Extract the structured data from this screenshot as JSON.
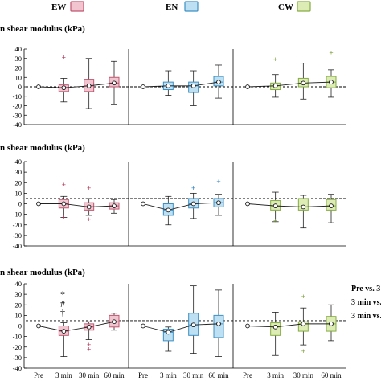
{
  "legend": [
    {
      "label": "EW",
      "fill": "#f2c4d0",
      "stroke": "#c0566f"
    },
    {
      "label": "EN",
      "fill": "#bde0f2",
      "stroke": "#3d8fc4"
    },
    {
      "label": "CW",
      "fill": "#dcecb4",
      "stroke": "#86ac43"
    }
  ],
  "groups": [
    {
      "name": "EW",
      "fill": "#f2c4d0",
      "stroke": "#c0566f",
      "outlier_color": "#b23a5a"
    },
    {
      "name": "EN",
      "fill": "#bde0f2",
      "stroke": "#3d8fc4",
      "outlier_color": "#2f7fc0"
    },
    {
      "name": "CW",
      "fill": "#dcecb4",
      "stroke": "#86ac43",
      "outlier_color": "#7da33a"
    }
  ],
  "x_tick_labels": [
    "Pre",
    "3 min",
    "30 min",
    "60 min"
  ],
  "annotations": {
    "stat_symbols": [
      "*",
      "#",
      "†"
    ],
    "right_notes": [
      "Pre vs. 3",
      "3 min vs.",
      "3 min vs."
    ]
  },
  "chart_data": [
    {
      "type": "box",
      "title": "n shear modulus (kPa)",
      "ylim": [
        -40,
        40
      ],
      "yticks": [
        40,
        30,
        20,
        10,
        0,
        -10,
        -20,
        -30,
        -40
      ],
      "reference_line": 0,
      "categories": [
        "Pre",
        "3 min",
        "30 min",
        "60 min"
      ],
      "series": [
        {
          "group": "EW",
          "boxes": [
            {
              "pre": true,
              "median": 0
            },
            {
              "median": -1,
              "q1": -5,
              "q3": 2,
              "whisker_low": -16,
              "whisker_high": 9,
              "outliers": [
                31
              ]
            },
            {
              "median": 1,
              "q1": -5,
              "q3": 8,
              "whisker_low": -23,
              "whisker_high": 30,
              "outliers": []
            },
            {
              "median": 4,
              "q1": 0,
              "q3": 10,
              "whisker_low": -19,
              "whisker_high": 27,
              "outliers": []
            }
          ]
        },
        {
          "group": "EN",
          "boxes": [
            {
              "pre": true,
              "median": 0
            },
            {
              "median": 1,
              "q1": -3,
              "q3": 5,
              "whisker_low": -9,
              "whisker_high": 17,
              "outliers": []
            },
            {
              "median": 1,
              "q1": -6,
              "q3": 5,
              "whisker_low": -20,
              "whisker_high": 17,
              "outliers": []
            },
            {
              "median": 5,
              "q1": 1,
              "q3": 11,
              "whisker_low": -12,
              "whisker_high": 23,
              "outliers": []
            }
          ]
        },
        {
          "group": "CW",
          "boxes": [
            {
              "pre": true,
              "median": 0
            },
            {
              "median": 1,
              "q1": -3,
              "q3": 4,
              "whisker_low": -11,
              "whisker_high": 13,
              "outliers": [
                29
              ]
            },
            {
              "median": 4,
              "q1": 0,
              "q3": 9,
              "whisker_low": -13,
              "whisker_high": 25,
              "outliers": []
            },
            {
              "median": 5,
              "q1": -1,
              "q3": 11,
              "whisker_low": -11,
              "whisker_high": 18,
              "outliers": [
                36
              ]
            }
          ]
        }
      ]
    },
    {
      "type": "box",
      "title": "n shear modulus (kPa)",
      "ylim": [
        -40,
        40
      ],
      "yticks": [
        40,
        30,
        20,
        10,
        0,
        -10,
        -20,
        -30,
        -40
      ],
      "reference_line": 5,
      "categories": [
        "Pre",
        "3 min",
        "30 min",
        "60 min"
      ],
      "series": [
        {
          "group": "EW",
          "boxes": [
            {
              "pre": true,
              "median": 0
            },
            {
              "median": 0,
              "q1": -4,
              "q3": 4,
              "whisker_low": -13,
              "whisker_high": 7,
              "outliers": [
                18,
                -13
              ]
            },
            {
              "median": -3,
              "q1": -6,
              "q3": 1,
              "whisker_low": -11,
              "whisker_high": 5,
              "outliers": [
                15,
                -15
              ]
            },
            {
              "median": -2,
              "q1": -5,
              "q3": 1,
              "whisker_low": -9,
              "whisker_high": 4,
              "outliers": []
            }
          ]
        },
        {
          "group": "EN",
          "boxes": [
            {
              "pre": true,
              "median": 0
            },
            {
              "median": -6,
              "q1": -11,
              "q3": 0,
              "whisker_low": -20,
              "whisker_high": 7,
              "outliers": []
            },
            {
              "median": 0,
              "q1": -4,
              "q3": 5,
              "whisker_low": -14,
              "whisker_high": 10,
              "outliers": [
                15
              ]
            },
            {
              "median": 1,
              "q1": -3,
              "q3": 5,
              "whisker_low": -11,
              "whisker_high": 9,
              "outliers": [
                21
              ]
            }
          ]
        },
        {
          "group": "CW",
          "boxes": [
            {
              "pre": true,
              "median": 0
            },
            {
              "median": -2,
              "q1": -6,
              "q3": 3,
              "whisker_low": -17,
              "whisker_high": 11,
              "outliers": [
                -16
              ]
            },
            {
              "median": -3,
              "q1": -6,
              "q3": 5,
              "whisker_low": -23,
              "whisker_high": 8,
              "outliers": []
            },
            {
              "median": -2,
              "q1": -6,
              "q3": 4,
              "whisker_low": -18,
              "whisker_high": 9,
              "outliers": []
            }
          ]
        }
      ]
    },
    {
      "type": "box",
      "title": "n shear modulus (kPa)",
      "ylim": [
        -40,
        40
      ],
      "yticks": [
        40,
        30,
        20,
        10,
        0,
        -10,
        -20,
        -30,
        -40
      ],
      "reference_line": 5,
      "categories": [
        "Pre",
        "3 min",
        "30 min",
        "60 min"
      ],
      "series": [
        {
          "group": "EW",
          "boxes": [
            {
              "pre": true,
              "median": 0
            },
            {
              "median": -5,
              "q1": -9,
              "q3": 0,
              "whisker_low": -29,
              "whisker_high": 3,
              "outliers": []
            },
            {
              "median": -1,
              "q1": -4,
              "q3": 2,
              "whisker_low": -13,
              "whisker_high": 4,
              "outliers": [
                -18,
                -22
              ]
            },
            {
              "median": 4,
              "q1": -1,
              "q3": 10,
              "whisker_low": -4,
              "whisker_high": 12,
              "outliers": []
            }
          ]
        },
        {
          "group": "EN",
          "boxes": [
            {
              "pre": true,
              "median": 0
            },
            {
              "median": -6,
              "q1": -14,
              "q3": -3,
              "whisker_low": -24,
              "whisker_high": -1,
              "outliers": []
            },
            {
              "median": 1,
              "q1": -9,
              "q3": 12,
              "whisker_low": -26,
              "whisker_high": 38,
              "outliers": []
            },
            {
              "median": 2,
              "q1": -11,
              "q3": 10,
              "whisker_low": -29,
              "whisker_high": 34,
              "outliers": []
            }
          ]
        },
        {
          "group": "CW",
          "boxes": [
            {
              "pre": true,
              "median": 0
            },
            {
              "median": -1,
              "q1": -9,
              "q3": 3,
              "whisker_low": -28,
              "whisker_high": 13,
              "outliers": []
            },
            {
              "median": 2,
              "q1": -5,
              "q3": 4,
              "whisker_low": -18,
              "whisker_high": 17,
              "outliers": [
                28,
                -24
              ]
            },
            {
              "median": 2,
              "q1": -5,
              "q3": 9,
              "whisker_low": -14,
              "whisker_high": 20,
              "outliers": []
            }
          ]
        }
      ]
    }
  ]
}
